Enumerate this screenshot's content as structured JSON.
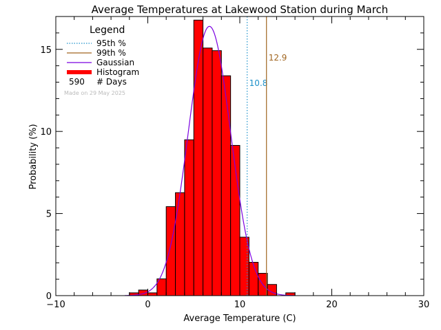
{
  "chart_data": {
    "type": "bar",
    "title": "Average Temperatures at Lakewood Station during March",
    "xlabel": "Average Temperature (C)",
    "ylabel": "Probability (%)",
    "xlim": [
      -10,
      30
    ],
    "ylim": [
      0,
      17
    ],
    "xticks": [
      -10,
      0,
      10,
      20,
      30
    ],
    "yticks": [
      0,
      5,
      10,
      15
    ],
    "legend": {
      "title": "Legend",
      "entries": [
        "95th %",
        "99th %",
        "Gaussian",
        "Histogram"
      ],
      "count": "590",
      "count_label": "# Days",
      "made_on": "Made on 29 May 2025",
      "placement": "top-left"
    },
    "histogram": {
      "bin_width": 1,
      "bin_starts": [
        -2,
        -1,
        0,
        1,
        2,
        3,
        4,
        5,
        6,
        7,
        8,
        9,
        10,
        11,
        12,
        13,
        14,
        15
      ],
      "values": [
        0.17,
        0.34,
        0.17,
        1.02,
        5.42,
        6.27,
        9.49,
        16.78,
        15.08,
        14.92,
        13.39,
        9.15,
        3.56,
        2.03,
        1.36,
        0.68,
        0,
        0.17
      ]
    },
    "gaussian": {
      "mean": 6.7,
      "sigma": 2.3,
      "peak": 16.4
    },
    "percentiles": [
      {
        "label": "95th %",
        "value": 10.8,
        "text": "10.8",
        "color": "#1a8fc9"
      },
      {
        "label": "99th %",
        "value": 12.9,
        "text": "12.9",
        "color": "#a0651f"
      }
    ],
    "colors": {
      "histogram": "#ff0000",
      "gaussian": "#7a00e0",
      "p95": "#1a8fc9",
      "p99": "#a0651f",
      "made_on": "#bbbbbb"
    }
  }
}
